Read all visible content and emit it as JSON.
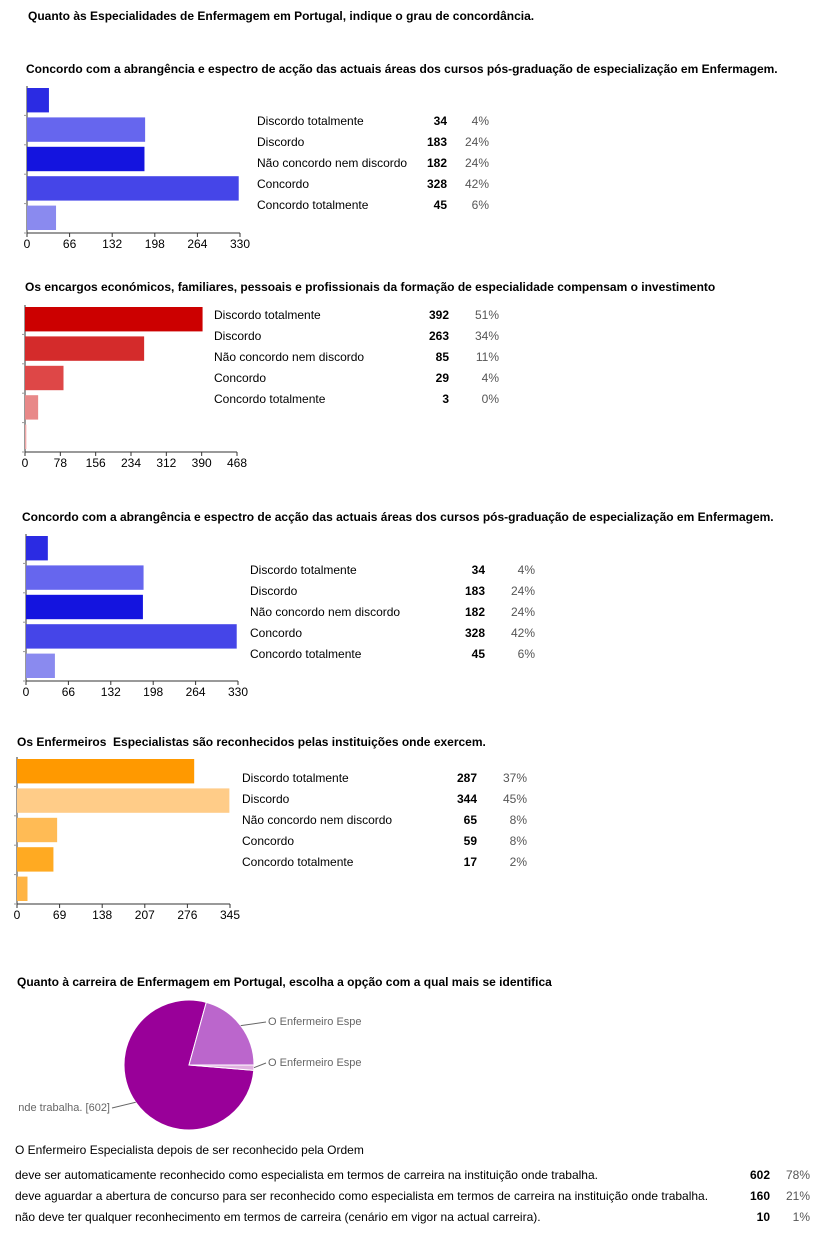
{
  "page_title": "Quanto às Especialidades de Enfermagem em Portugal, indique o grau de concordância.",
  "chart_data": [
    {
      "type": "bar",
      "orientation": "horizontal",
      "title": "Concordo com a abrangência e espectro de acção das actuais áreas dos cursos pós-graduação de especialização em Enfermagem.",
      "categories": [
        "Discordo totalmente",
        "Discordo",
        "Não concordo nem discordo",
        "Concordo",
        "Concordo totalmente"
      ],
      "values": [
        34,
        183,
        182,
        328,
        45
      ],
      "percent_labels": [
        "4%",
        "24%",
        "24%",
        "42%",
        "6%"
      ],
      "colors": [
        "#2b2be3",
        "#6666ee",
        "#1414df",
        "#4545e8",
        "#8a8aef"
      ],
      "xlim": [
        0,
        330
      ],
      "xticks": [
        0,
        66,
        132,
        198,
        264,
        330
      ]
    },
    {
      "type": "bar",
      "orientation": "horizontal",
      "title": "Os encargos económicos, familiares, pessoais e profissionais da formação de especialidade compensam o investimento",
      "categories": [
        "Discordo totalmente",
        "Discordo",
        "Não concordo nem discordo",
        "Concordo",
        "Concordo totalmente"
      ],
      "values": [
        392,
        263,
        85,
        29,
        3
      ],
      "percent_labels": [
        "51%",
        "34%",
        "11%",
        "4%",
        "0%"
      ],
      "colors": [
        "#cc0000",
        "#d42b2b",
        "#de4747",
        "#e88888",
        "#f0a8a8"
      ],
      "xlim": [
        0,
        468
      ],
      "xticks": [
        0,
        78,
        156,
        234,
        312,
        390,
        468
      ]
    },
    {
      "type": "bar",
      "orientation": "horizontal",
      "title": "Concordo com a abrangência e espectro de acção das actuais áreas dos cursos pós-graduação de especialização em Enfermagem.",
      "categories": [
        "Discordo totalmente",
        "Discordo",
        "Não concordo nem discordo",
        "Concordo",
        "Concordo totalmente"
      ],
      "values": [
        34,
        183,
        182,
        328,
        45
      ],
      "percent_labels": [
        "4%",
        "24%",
        "24%",
        "42%",
        "6%"
      ],
      "colors": [
        "#2b2be3",
        "#6666ee",
        "#1414df",
        "#4545e8",
        "#8a8aef"
      ],
      "xlim": [
        0,
        330
      ],
      "xticks": [
        0,
        66,
        132,
        198,
        264,
        330
      ]
    },
    {
      "type": "bar",
      "orientation": "horizontal",
      "title": "Os Enfermeiros  Especialistas são reconhecidos pelas instituições onde exercem.",
      "categories": [
        "Discordo totalmente",
        "Discordo",
        "Não concordo nem discordo",
        "Concordo",
        "Concordo totalmente"
      ],
      "values": [
        287,
        344,
        65,
        59,
        17
      ],
      "percent_labels": [
        "37%",
        "45%",
        "8%",
        "8%",
        "2%"
      ],
      "colors": [
        "#ff9900",
        "#ffcc88",
        "#ffbb55",
        "#ffaa22",
        "#ffb444"
      ],
      "xlim": [
        0,
        345
      ],
      "xticks": [
        0,
        69,
        138,
        207,
        276,
        345
      ]
    },
    {
      "type": "pie",
      "title": "Quanto à carreira de Enfermagem em Portugal, escolha a opção com a qual mais se identifica",
      "table_title": "O Enfermeiro Especialista depois de ser reconhecido pela Ordem",
      "categories": [
        "deve ser automaticamente reconhecido como especialista em termos de carreira na instituição onde trabalha.",
        "deve aguardar a abertura de concurso para ser reconhecido como especialista em termos de carreira na instituição onde trabalha.",
        "não deve ter qualquer reconhecimento em termos de carreira (cenário em vigor na actual carreira)."
      ],
      "values": [
        602,
        160,
        10
      ],
      "percent_labels": [
        "78%",
        "21%",
        "1%"
      ],
      "slice_labels": [
        "nde trabalha. [602]",
        "O Enfermeiro Espe",
        "O Enfermeiro Espe"
      ],
      "colors": [
        "#990099",
        "#bb66cc",
        "#e0b0e0"
      ]
    }
  ]
}
